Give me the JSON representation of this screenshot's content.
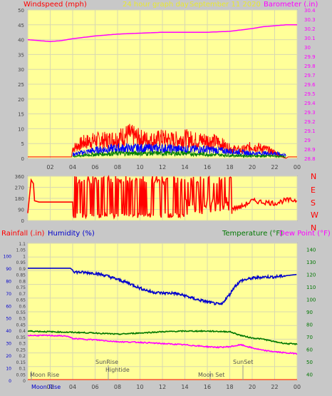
{
  "colors": {
    "background": "#c8c8c8",
    "plot_background": "#ffff99",
    "grid": "#d8d8b0",
    "wind_speed": "#ff0000",
    "wind_gust": "#0000ff",
    "wind_avg": "#008000",
    "barometer": "#ff00ff",
    "direction": "#ff0000",
    "rainfall": "#ff0000",
    "humidity": "#0000cc",
    "temperature": "#007700",
    "dew_point": "#ff00ff",
    "axis_text": "#444444"
  },
  "header": {
    "center_title": "24 hour graph day",
    "date": "September 11 2020"
  },
  "chart_data": [
    {
      "type": "line",
      "id": "wind",
      "ylabel": "Windspeed (mph)",
      "y2label": "Barometer (.in)",
      "ylim": [
        0,
        50
      ],
      "y_ticks": [
        0,
        5,
        10,
        15,
        20,
        25,
        30,
        35,
        40,
        45,
        50
      ],
      "y2lim": [
        28.8,
        30.4
      ],
      "y2_ticks": [
        "28.8",
        "28.9",
        "29",
        "29.1",
        "29.2",
        "29.3",
        "29.4",
        "29.5",
        "29.6",
        "29.7",
        "29.8",
        "29.9",
        "30",
        "30.1",
        "30.2",
        "30.3",
        "30.4"
      ],
      "xlim": [
        0,
        24
      ],
      "x_ticks": [
        "02",
        "04",
        "06",
        "08",
        "10",
        "12",
        "14",
        "16",
        "18",
        "20",
        "22",
        "00"
      ],
      "grid": true,
      "series": [
        {
          "key": "barometer",
          "x": [
            0,
            1,
            2,
            3,
            4,
            6,
            8,
            10,
            12,
            14,
            16,
            18,
            20,
            21,
            22,
            23,
            24
          ],
          "y": [
            30.08,
            30.07,
            30.06,
            30.07,
            30.09,
            30.12,
            30.14,
            30.15,
            30.16,
            30.16,
            30.16,
            30.17,
            30.2,
            30.22,
            30.23,
            30.24,
            30.24
          ]
        },
        {
          "key": "wind_speed_envelope",
          "x": [
            0,
            3.9,
            4,
            5,
            6,
            7,
            8,
            9,
            10,
            11,
            12,
            13,
            14,
            15,
            16,
            17,
            18,
            19,
            20,
            21,
            22,
            23,
            24
          ],
          "y": [
            0,
            0,
            5,
            8,
            9,
            9,
            10,
            12,
            10,
            9,
            10,
            9,
            10,
            9,
            9,
            8,
            5,
            4,
            6,
            5,
            3,
            0,
            0
          ]
        },
        {
          "key": "wind_gust_envelope",
          "x": [
            4,
            6,
            8,
            10,
            12,
            14,
            16,
            18,
            20,
            22,
            23
          ],
          "y": [
            2,
            4,
            5,
            5,
            5,
            4.5,
            4.5,
            3.5,
            2.5,
            2.5,
            1.5
          ]
        },
        {
          "key": "wind_avg_envelope",
          "x": [
            4,
            6,
            8,
            10,
            12,
            14,
            16,
            18,
            20,
            22,
            23
          ],
          "y": [
            1,
            2,
            2.5,
            2.5,
            2.5,
            2.5,
            2,
            1.5,
            1.2,
            1.2,
            0.8
          ]
        }
      ]
    },
    {
      "type": "line",
      "id": "direction",
      "ylim": [
        0,
        360
      ],
      "y_ticks": [
        "0",
        "90",
        "180",
        "270",
        "360"
      ],
      "y2_labels": [
        "N",
        "W",
        "S",
        "E",
        "N"
      ],
      "xlim": [
        0,
        24
      ],
      "grid": true,
      "series": [
        {
          "key": "direction_steady",
          "x": [
            0,
            0.3,
            0.5,
            0.6,
            1,
            2,
            3,
            3.9,
            4
          ],
          "y": [
            60,
            330,
            300,
            160,
            150,
            150,
            150,
            150,
            150
          ]
        },
        {
          "key": "direction_tail",
          "x": [
            18.2,
            19,
            20,
            21,
            22,
            23,
            24
          ],
          "y": [
            100,
            110,
            160,
            150,
            140,
            165,
            165
          ]
        }
      ]
    },
    {
      "type": "line",
      "id": "thermo",
      "ylabel": "Rainfall (.in)",
      "ylabel2": "Humidity (%)",
      "y2label": "Temperature (°F)",
      "y2label2": "Dew Point (°F)",
      "ylim": [
        0,
        1.1
      ],
      "y_ticks": [
        "0",
        "0.05",
        "0.1",
        "0.15",
        "0.2",
        "0.25",
        "0.3",
        "0.35",
        "0.4",
        "0.45",
        "0.5",
        "0.55",
        "0.6",
        "0.65",
        "0.7",
        "0.75",
        "0.8",
        "0.85",
        "0.9",
        "0.95",
        "1",
        "1.05",
        "1.1"
      ],
      "humidity_ticks": [
        "0",
        "10",
        "20",
        "30",
        "40",
        "50",
        "60",
        "70",
        "80",
        "90",
        "100"
      ],
      "y2lim": [
        35,
        145
      ],
      "y2_ticks": [
        "40",
        "50",
        "60",
        "70",
        "80",
        "90",
        "100",
        "110",
        "120",
        "130",
        "140"
      ],
      "xlim": [
        0,
        24
      ],
      "x_ticks": [
        "02",
        "04",
        "06",
        "08",
        "10",
        "12",
        "14",
        "16",
        "18",
        "20",
        "22",
        "00"
      ],
      "grid": true,
      "series": [
        {
          "key": "humidity",
          "x": [
            0,
            1,
            2,
            3,
            3.8,
            4.2,
            6,
            7,
            8,
            9,
            10,
            11,
            12,
            13,
            14,
            15,
            16,
            16.5,
            17,
            17.3,
            17.6,
            18,
            18.4,
            19,
            20,
            21,
            22,
            23,
            24
          ],
          "y": [
            90,
            90,
            90,
            90,
            90,
            87,
            86,
            84,
            81,
            78,
            74,
            71,
            70,
            70,
            68,
            65,
            63,
            62,
            61,
            61,
            65,
            69,
            75,
            80,
            82,
            83,
            83,
            84,
            85
          ]
        },
        {
          "key": "temperature",
          "x": [
            0,
            2,
            4,
            6,
            8,
            10,
            12,
            14,
            16,
            18,
            19,
            20,
            21,
            22,
            23,
            24
          ],
          "y": [
            74.5,
            74,
            73.5,
            73,
            72,
            73,
            74,
            74.5,
            74.5,
            74,
            71,
            69,
            68,
            66,
            64.5,
            64
          ]
        },
        {
          "key": "dew_point",
          "x": [
            0,
            2,
            3.5,
            4,
            6,
            8,
            10,
            12,
            14,
            16,
            17,
            18,
            19,
            20,
            21,
            22,
            23,
            24
          ],
          "y": [
            71,
            71,
            70.5,
            68.5,
            67.5,
            66,
            65.5,
            64.5,
            63.5,
            62,
            61.5,
            62,
            63.5,
            61,
            59,
            58,
            57,
            56.5
          ]
        }
      ]
    }
  ],
  "annotations": {
    "moon_rise_top": "Moon Rise",
    "moon_rise_bottom": "Moon Rise",
    "sunrise": "SunRise",
    "hightide": "Hightide",
    "moon_set": "Moon Set",
    "sunset": "SunSet"
  }
}
